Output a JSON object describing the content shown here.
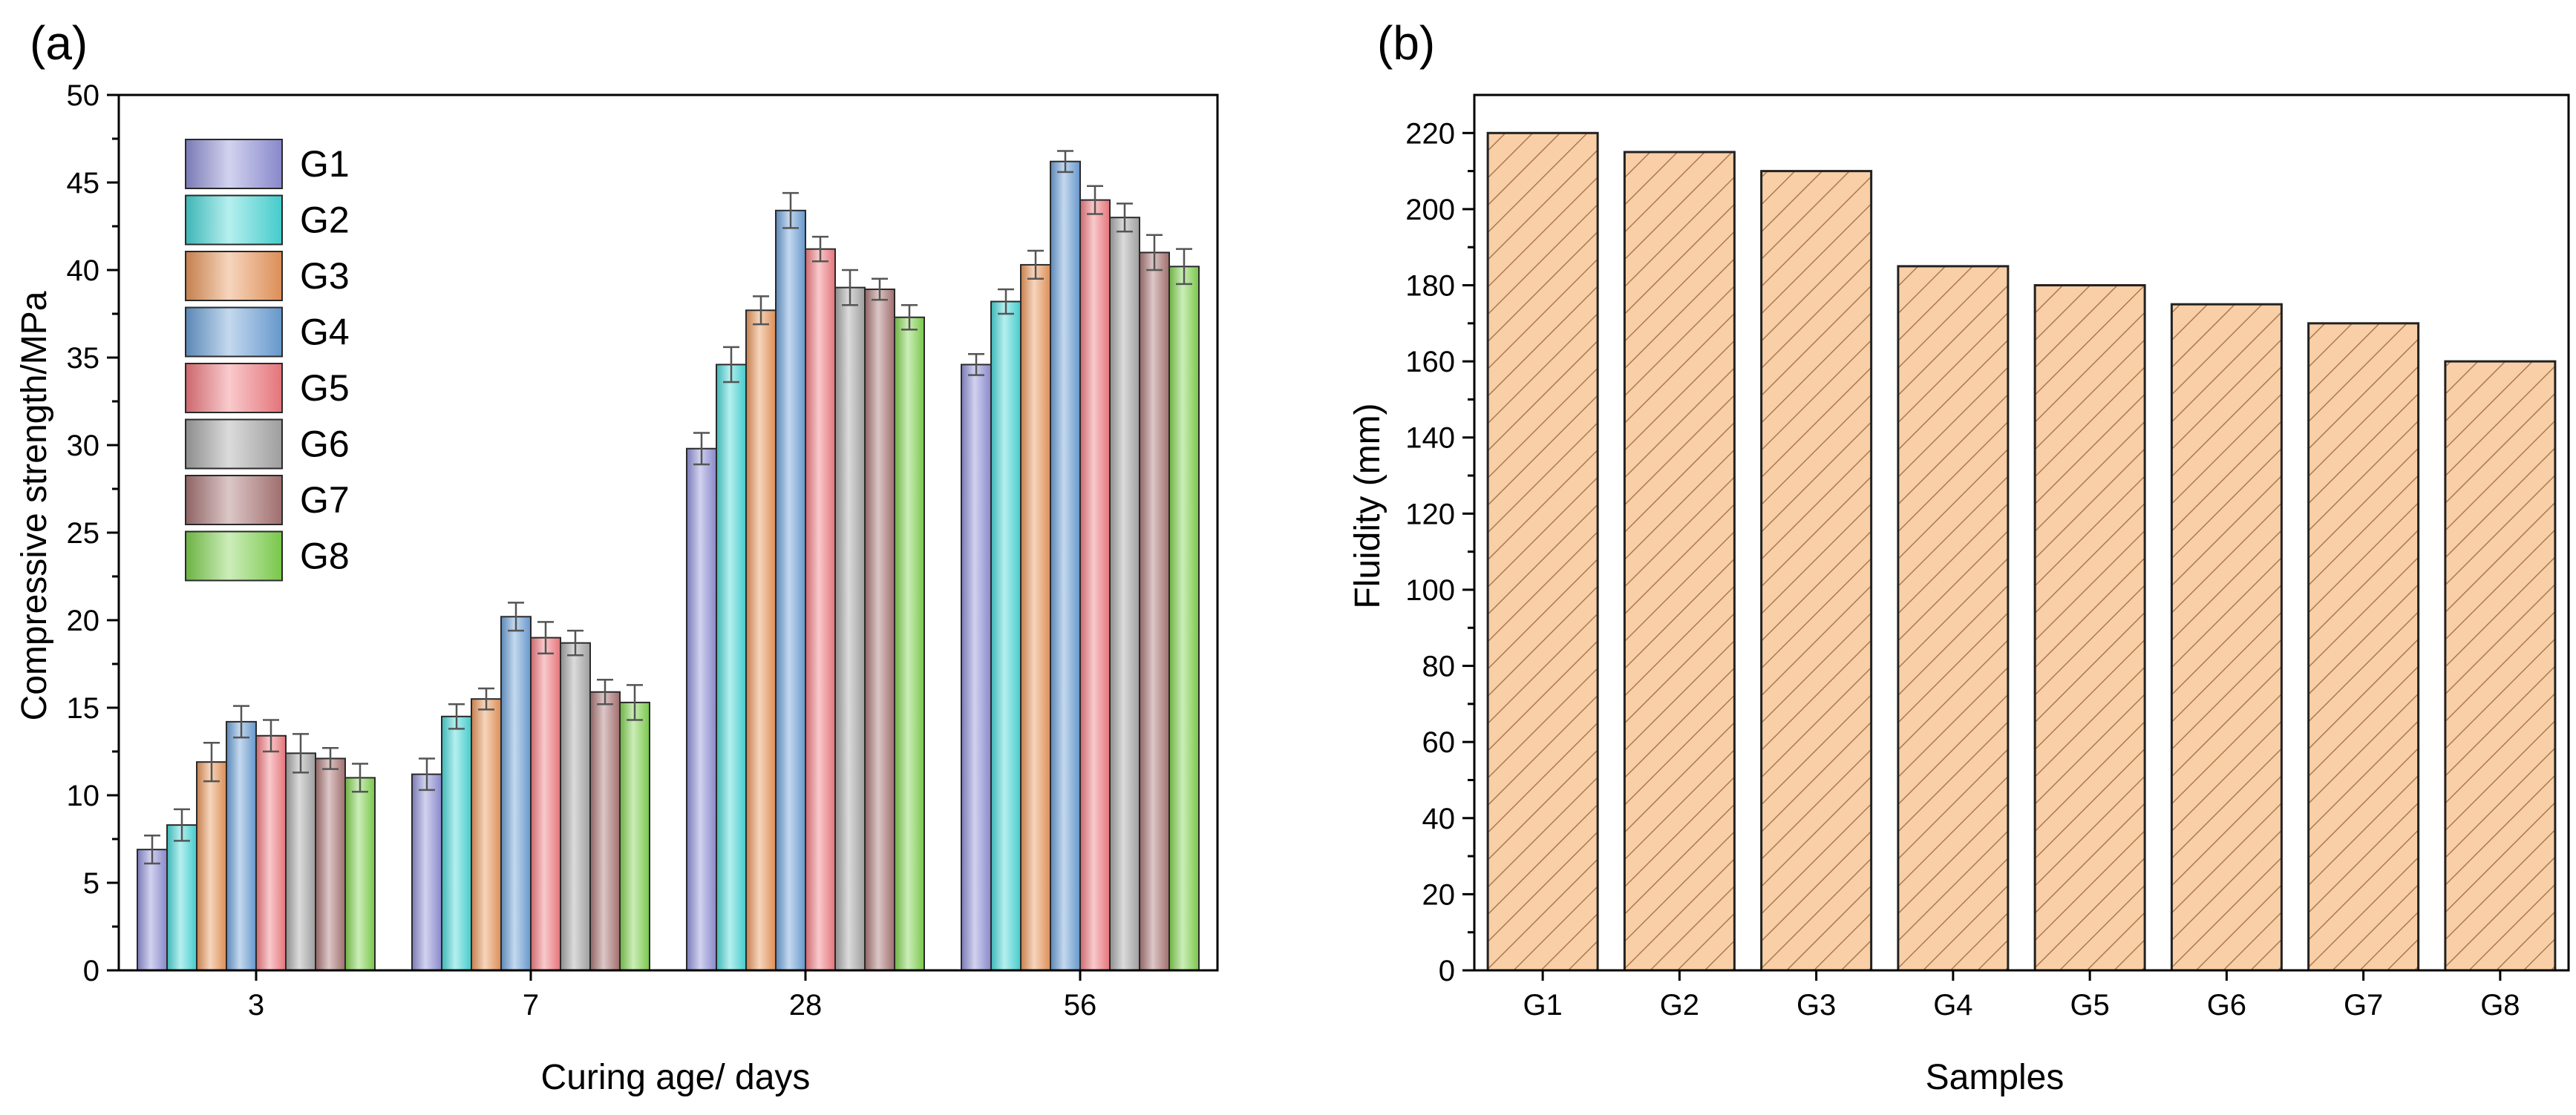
{
  "chart_data": [
    {
      "panel_label": "(a)",
      "type": "bar",
      "grouped": true,
      "title": "",
      "xlabel": "Curing age/ days",
      "ylabel": "Compressive strength/MPa",
      "ylim": [
        0,
        50
      ],
      "yticks": [
        0,
        5,
        10,
        15,
        20,
        25,
        30,
        35,
        40,
        45,
        50
      ],
      "categories": [
        "3",
        "7",
        "28",
        "56"
      ],
      "legend_position": "top-left",
      "series": [
        {
          "name": "G1",
          "color": "#8f8fd6",
          "values": [
            6.9,
            11.2,
            29.8,
            34.6
          ],
          "errors": [
            0.8,
            0.9,
            0.9,
            0.6
          ]
        },
        {
          "name": "G2",
          "color": "#49d6d6",
          "values": [
            8.3,
            14.5,
            34.6,
            38.2
          ],
          "errors": [
            0.9,
            0.7,
            1.0,
            0.7
          ]
        },
        {
          "name": "G3",
          "color": "#e8955a",
          "values": [
            11.9,
            15.5,
            37.7,
            40.3
          ],
          "errors": [
            1.1,
            0.6,
            0.8,
            0.8
          ]
        },
        {
          "name": "G4",
          "color": "#6b9fd6",
          "values": [
            14.2,
            20.2,
            43.4,
            46.2
          ],
          "errors": [
            0.9,
            0.8,
            1.0,
            0.6
          ]
        },
        {
          "name": "G5",
          "color": "#f07a80",
          "values": [
            13.4,
            19.0,
            41.2,
            44.0
          ],
          "errors": [
            0.9,
            0.9,
            0.7,
            0.8
          ]
        },
        {
          "name": "G6",
          "color": "#a6a6a6",
          "values": [
            12.4,
            18.7,
            39.0,
            43.0
          ],
          "errors": [
            1.1,
            0.7,
            1.0,
            0.8
          ]
        },
        {
          "name": "G7",
          "color": "#a87474",
          "values": [
            12.1,
            15.9,
            38.9,
            41.0
          ],
          "errors": [
            0.6,
            0.7,
            0.6,
            1.0
          ]
        },
        {
          "name": "G8",
          "color": "#7fd14f",
          "values": [
            11.0,
            15.3,
            37.3,
            40.2
          ],
          "errors": [
            0.8,
            1.0,
            0.7,
            1.0
          ]
        }
      ]
    },
    {
      "panel_label": "(b)",
      "type": "bar",
      "title": "",
      "xlabel": "Samples",
      "ylabel": "Fluidity (mm)",
      "ylim": [
        0,
        230
      ],
      "yticks": [
        0,
        20,
        40,
        60,
        80,
        100,
        120,
        140,
        160,
        180,
        200,
        220
      ],
      "categories": [
        "G1",
        "G2",
        "G3",
        "G4",
        "G5",
        "G6",
        "G7",
        "G8"
      ],
      "values": [
        220,
        215,
        210,
        185,
        180,
        175,
        170,
        160
      ],
      "fill_color": "#f8cfa6",
      "hatch_color": "#b07850",
      "pattern": "diagonal-hatch"
    }
  ]
}
